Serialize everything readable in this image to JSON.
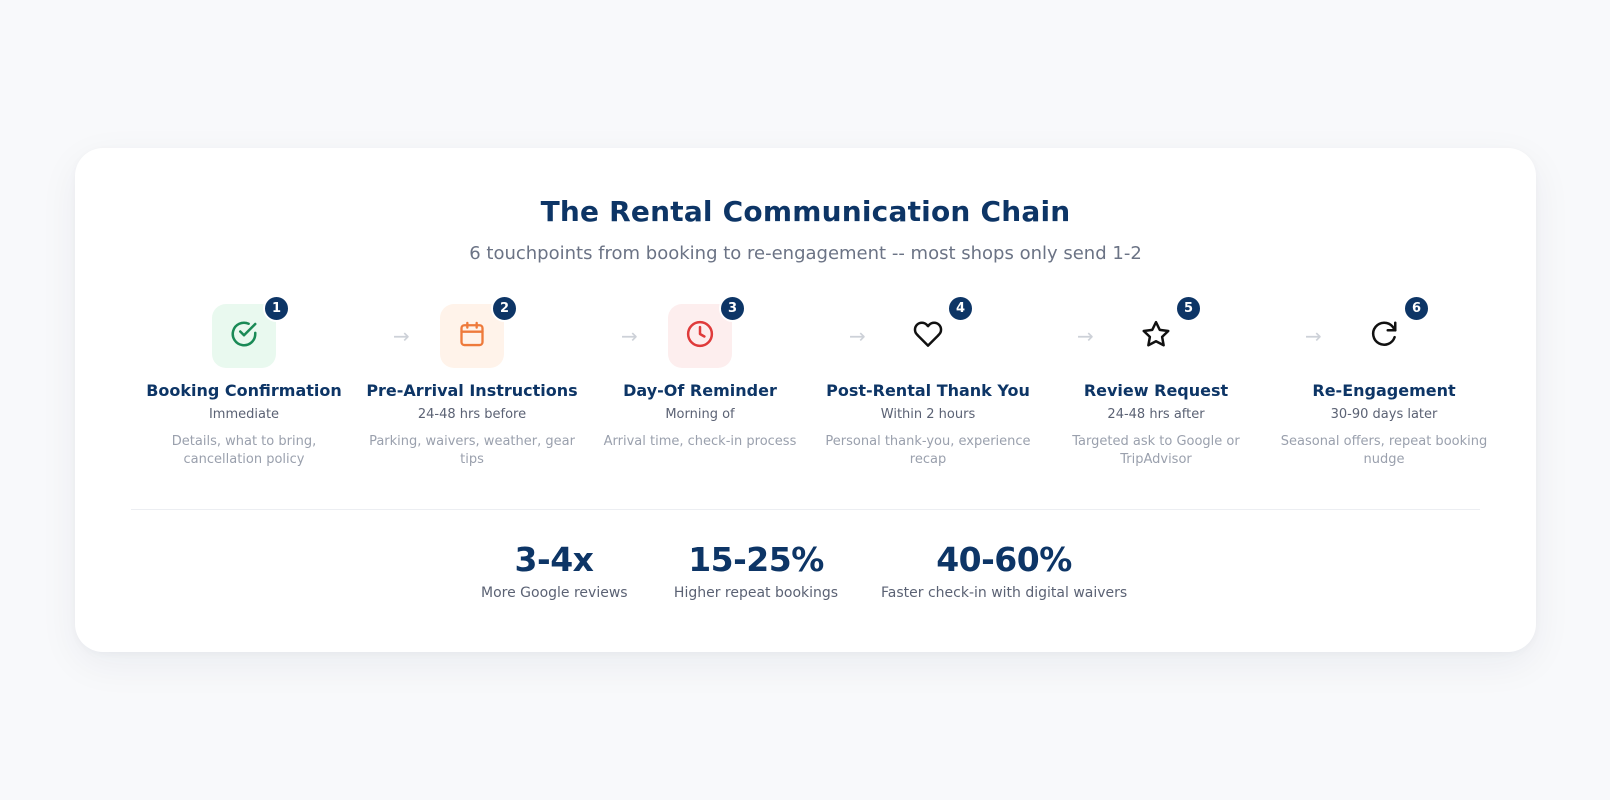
{
  "title": "The Rental Communication Chain",
  "subtitle": "6 touchpoints from booking to re-engagement -- most shops only send 1-2",
  "arrow_glyph": "→",
  "steps": [
    {
      "number": "1",
      "title": "Booking Confirmation",
      "timing": "Immediate",
      "description": "Details, what to bring, cancellation policy",
      "icon": "check-circle-icon",
      "icon_color": "#1a8a56",
      "icon_bg": "#e9f9ef"
    },
    {
      "number": "2",
      "title": "Pre-Arrival Instructions",
      "timing": "24-48 hrs before",
      "description": "Parking, waivers, weather, gear tips",
      "icon": "calendar-icon",
      "icon_color": "#ee7a3b",
      "icon_bg": "#fff3ea"
    },
    {
      "number": "3",
      "title": "Day-Of Reminder",
      "timing": "Morning of",
      "description": "Arrival time, check-in process",
      "icon": "clock-icon",
      "icon_color": "#df3b3b",
      "icon_bg": "#fdeeee"
    },
    {
      "number": "4",
      "title": "Post-Rental Thank You",
      "timing": "Within 2 hours",
      "description": "Personal thank-you, experience recap",
      "icon": "heart-icon",
      "icon_color": "#111111",
      "icon_bg": "transparent"
    },
    {
      "number": "5",
      "title": "Review Request",
      "timing": "24-48 hrs after",
      "description": "Targeted ask to Google or TripAdvisor",
      "icon": "star-icon",
      "icon_color": "#111111",
      "icon_bg": "transparent"
    },
    {
      "number": "6",
      "title": "Re-Engagement",
      "timing": "30-90 days later",
      "description": "Seasonal offers, repeat booking nudge",
      "icon": "refresh-icon",
      "icon_color": "#111111",
      "icon_bg": "transparent"
    }
  ],
  "stats": [
    {
      "value": "3-4x",
      "label": "More Google reviews"
    },
    {
      "value": "15-25%",
      "label": "Higher repeat bookings"
    },
    {
      "value": "40-60%",
      "label": "Faster check-in with digital waivers"
    }
  ],
  "colors": {
    "navy": "#0d3566",
    "background": "#f8f9fb",
    "card": "#ffffff"
  }
}
